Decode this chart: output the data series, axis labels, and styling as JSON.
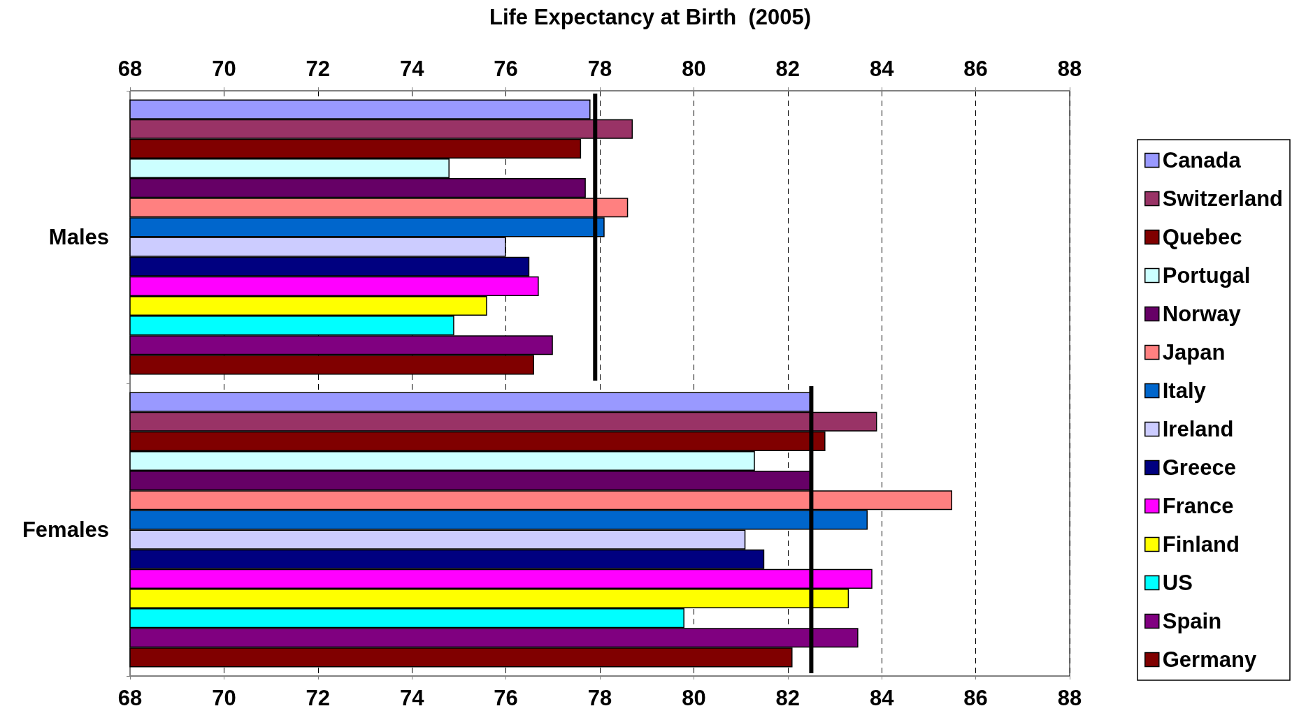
{
  "chart_data": {
    "type": "bar",
    "orientation": "horizontal",
    "title": "Life Expectancy at Birth  (2005)",
    "categories": [
      "Males",
      "Females"
    ],
    "series": [
      {
        "name": "Canada",
        "color": "#9999ff",
        "values": [
          77.8,
          82.5
        ]
      },
      {
        "name": "Switzerland",
        "color": "#993366",
        "values": [
          78.7,
          83.9
        ]
      },
      {
        "name": "Quebec",
        "color": "#800000",
        "values": [
          77.6,
          82.8
        ]
      },
      {
        "name": "Portugal",
        "color": "#ccffff",
        "values": [
          74.8,
          81.3
        ]
      },
      {
        "name": "Norway",
        "color": "#660066",
        "values": [
          77.7,
          82.5
        ]
      },
      {
        "name": "Japan",
        "color": "#ff8080",
        "values": [
          78.6,
          85.5
        ]
      },
      {
        "name": "Italy",
        "color": "#0066cc",
        "values": [
          78.1,
          83.7
        ]
      },
      {
        "name": "Ireland",
        "color": "#ccccff",
        "values": [
          76.0,
          81.1
        ]
      },
      {
        "name": "Greece",
        "color": "#000080",
        "values": [
          76.5,
          81.5
        ]
      },
      {
        "name": "France",
        "color": "#ff00ff",
        "values": [
          76.7,
          83.8
        ]
      },
      {
        "name": "Finland",
        "color": "#ffff00",
        "values": [
          75.6,
          83.3
        ]
      },
      {
        "name": "US",
        "color": "#00ffff",
        "values": [
          74.9,
          79.8
        ]
      },
      {
        "name": "Spain",
        "color": "#800080",
        "values": [
          77.0,
          83.5
        ]
      },
      {
        "name": "Germany",
        "color": "#800000",
        "values": [
          76.6,
          82.1
        ]
      }
    ],
    "xlim": [
      68,
      88
    ],
    "xticks": [
      68,
      70,
      72,
      74,
      76,
      78,
      80,
      82,
      84,
      86,
      88
    ],
    "x2lim": [
      68,
      88
    ],
    "x2ticks": [
      68,
      70,
      72,
      74,
      76,
      78,
      80,
      82,
      84,
      86,
      88
    ],
    "ref_lines": [
      {
        "axis": "x",
        "value": 77.9,
        "color": "#000000",
        "line_style": "solid"
      },
      {
        "axis": "x",
        "value": 82.5,
        "color": "#000000",
        "line_style": "solid"
      }
    ],
    "grid": "x",
    "legend": "right"
  }
}
